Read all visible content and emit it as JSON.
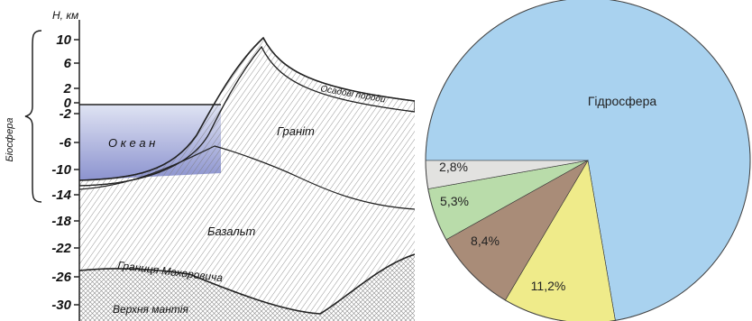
{
  "section": {
    "axis_title": "H, км",
    "biosphere_label": "Біосфера",
    "ticks": [
      "10",
      "6",
      "2",
      "0",
      "-2",
      "-6",
      "-10",
      "-14",
      "-18",
      "-22",
      "-26",
      "-30"
    ],
    "layers": {
      "ocean": "О к е а н",
      "sediment": "Осадові породи",
      "granite": "Граніт",
      "basalt": "Базальт",
      "moho": "Границя Мохоровича",
      "mantle": "Верхня мантія"
    },
    "colors": {
      "ocean_top": "#dfe3f3",
      "ocean_bottom": "#8c93cf",
      "hatch": "#7a7a7a",
      "line": "#222222"
    }
  },
  "chart_data": {
    "type": "pie",
    "slices": [
      {
        "label": "Гідросфера",
        "value": 72.3,
        "color": "#a9d2ef"
      },
      {
        "label": "11,2%",
        "value": 11.2,
        "color": "#efeb8a"
      },
      {
        "label": "8,4%",
        "value": 8.4,
        "color": "#a98c78"
      },
      {
        "label": "5,3%",
        "value": 5.3,
        "color": "#b9dcaa"
      },
      {
        "label": "2,8%",
        "value": 2.8,
        "color": "#e2e2e0"
      }
    ]
  }
}
